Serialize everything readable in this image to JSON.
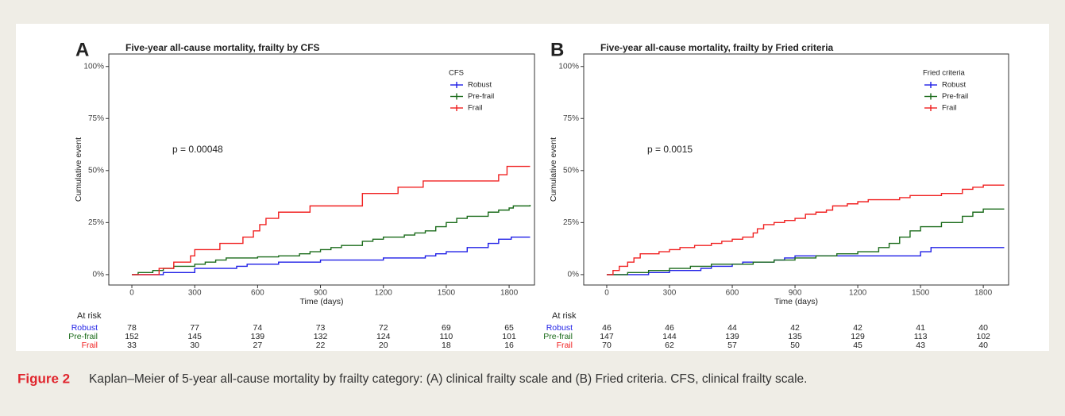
{
  "chart_data": [
    {
      "type": "line",
      "step": true,
      "panel": "A",
      "title": "Five-year all-cause mortality, frailty by CFS",
      "xlabel": "Time (days)",
      "ylabel": "Cumulative event",
      "xlim": [
        -110,
        1921
      ],
      "ylim": [
        -5,
        106
      ],
      "xticks": [
        0,
        300,
        600,
        900,
        1200,
        1500,
        1800
      ],
      "yticks": [
        {
          "value": 0,
          "label": "0%"
        },
        {
          "value": 25,
          "label": "25%"
        },
        {
          "value": 50,
          "label": "50%"
        },
        {
          "value": 75,
          "label": "75%"
        },
        {
          "value": 100,
          "label": "100%"
        }
      ],
      "legend_title": "CFS",
      "annotation": "p = 0.00048",
      "series": [
        {
          "name": "Robust",
          "color": "#1f1fe6",
          "x": [
            0,
            150,
            300,
            500,
            550,
            700,
            900,
            1200,
            1400,
            1450,
            1500,
            1600,
            1700,
            1750,
            1810,
            1900
          ],
          "values": [
            0,
            1,
            3,
            4,
            5,
            6,
            7,
            8,
            9,
            10,
            11,
            13,
            15,
            17,
            18,
            18
          ]
        },
        {
          "name": "Pre-frail",
          "color": "#1a6b1a",
          "x": [
            0,
            30,
            100,
            150,
            200,
            300,
            350,
            400,
            450,
            600,
            700,
            800,
            850,
            900,
            950,
            1000,
            1100,
            1150,
            1200,
            1300,
            1350,
            1400,
            1450,
            1500,
            1550,
            1600,
            1700,
            1750,
            1800,
            1820,
            1900
          ],
          "values": [
            0,
            1,
            2,
            3,
            4,
            5,
            6,
            7,
            8,
            8.5,
            9,
            10,
            11,
            12,
            13,
            14,
            16,
            17,
            18,
            19,
            20,
            21,
            23,
            25,
            27,
            28,
            30,
            31,
            32,
            33,
            33.5
          ]
        },
        {
          "name": "Frail",
          "color": "#f02020",
          "x": [
            0,
            130,
            200,
            280,
            300,
            420,
            530,
            580,
            610,
            640,
            700,
            850,
            1100,
            1270,
            1390,
            1750,
            1790,
            1900
          ],
          "values": [
            0,
            3,
            6,
            9,
            12,
            15,
            18,
            21,
            24,
            27,
            30,
            33,
            39,
            42,
            45,
            48,
            52,
            52
          ]
        }
      ],
      "risk_table": {
        "title": "At risk",
        "rows": [
          {
            "name": "Robust",
            "color": "#1f1fe6",
            "values": [
              78,
              77,
              74,
              73,
              72,
              69,
              65
            ]
          },
          {
            "name": "Pre-frail",
            "color": "#1a6b1a",
            "values": [
              152,
              145,
              139,
              132,
              124,
              110,
              101
            ]
          },
          {
            "name": "Frail",
            "color": "#f02020",
            "values": [
              33,
              30,
              27,
              22,
              20,
              18,
              16
            ]
          }
        ]
      }
    },
    {
      "type": "line",
      "step": true,
      "panel": "B",
      "title": "Five-year all-cause mortality, frailty by Fried criteria",
      "xlabel": "Time (days)",
      "ylabel": "Cumulative event",
      "xlim": [
        -110,
        1921
      ],
      "ylim": [
        -5,
        106
      ],
      "xticks": [
        0,
        300,
        600,
        900,
        1200,
        1500,
        1800
      ],
      "yticks": [
        {
          "value": 0,
          "label": "0%"
        },
        {
          "value": 25,
          "label": "25%"
        },
        {
          "value": 50,
          "label": "50%"
        },
        {
          "value": 75,
          "label": "75%"
        },
        {
          "value": 100,
          "label": "100%"
        }
      ],
      "legend_title": "Fried criteria",
      "annotation": "p = 0.0015",
      "series": [
        {
          "name": "Robust",
          "color": "#1f1fe6",
          "x": [
            0,
            200,
            300,
            450,
            500,
            600,
            650,
            800,
            850,
            900,
            1500,
            1550,
            1900
          ],
          "values": [
            0,
            1,
            2,
            3,
            4,
            5,
            6,
            7,
            8,
            9,
            11,
            13,
            13
          ]
        },
        {
          "name": "Pre-frail",
          "color": "#1a6b1a",
          "x": [
            0,
            100,
            200,
            300,
            400,
            500,
            700,
            800,
            900,
            1000,
            1100,
            1200,
            1300,
            1350,
            1400,
            1450,
            1500,
            1600,
            1700,
            1750,
            1800,
            1900
          ],
          "values": [
            0,
            1,
            2,
            3,
            4,
            5,
            6,
            7,
            8,
            9,
            10,
            11,
            13,
            15,
            18,
            21,
            23,
            25,
            28,
            30,
            31.5,
            31.5
          ]
        },
        {
          "name": "Frail",
          "color": "#f02020",
          "x": [
            0,
            30,
            60,
            100,
            130,
            160,
            250,
            300,
            350,
            420,
            500,
            550,
            600,
            650,
            700,
            720,
            750,
            800,
            850,
            900,
            950,
            1000,
            1050,
            1080,
            1150,
            1200,
            1250,
            1400,
            1450,
            1600,
            1700,
            1750,
            1800,
            1900
          ],
          "values": [
            0,
            2,
            4,
            6,
            8,
            10,
            11,
            12,
            13,
            14,
            15,
            16,
            17,
            18,
            20,
            22,
            24,
            25,
            26,
            27,
            29,
            30,
            31,
            33,
            34,
            35,
            36,
            37,
            38,
            39,
            41,
            42,
            43,
            43
          ]
        }
      ],
      "risk_table": {
        "title": "At risk",
        "rows": [
          {
            "name": "Robust",
            "color": "#1f1fe6",
            "values": [
              46,
              46,
              44,
              42,
              42,
              41,
              40
            ]
          },
          {
            "name": "Pre-frail",
            "color": "#1a6b1a",
            "values": [
              147,
              144,
              139,
              135,
              129,
              113,
              102
            ]
          },
          {
            "name": "Frail",
            "color": "#f02020",
            "values": [
              70,
              62,
              57,
              50,
              45,
              43,
              40
            ]
          }
        ]
      }
    }
  ],
  "caption": {
    "label": "Figure 2",
    "text": "Kaplan–Meier of 5-year all-cause mortality by frailty category: (A) clinical frailty scale and (B) Fried criteria. CFS, clinical frailty scale."
  }
}
